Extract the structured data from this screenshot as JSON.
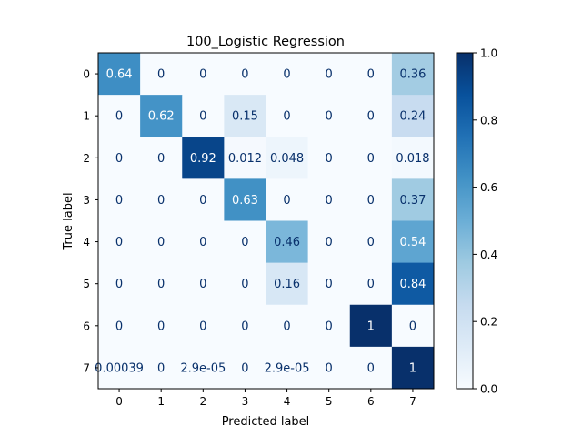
{
  "chart_data": {
    "type": "heatmap",
    "title": "100_Logistic Regression",
    "xlabel": "Predicted label",
    "ylabel": "True label",
    "x_categories": [
      "0",
      "1",
      "2",
      "3",
      "4",
      "5",
      "6",
      "7"
    ],
    "y_categories": [
      "0",
      "1",
      "2",
      "3",
      "4",
      "5",
      "6",
      "7"
    ],
    "values": [
      [
        0.64,
        0,
        0,
        0,
        0,
        0,
        0,
        0.36
      ],
      [
        0,
        0.62,
        0,
        0.15,
        0,
        0,
        0,
        0.24
      ],
      [
        0,
        0,
        0.92,
        0.012,
        0.048,
        0,
        0,
        0.018
      ],
      [
        0,
        0,
        0,
        0.63,
        0,
        0,
        0,
        0.37
      ],
      [
        0,
        0,
        0,
        0,
        0.46,
        0,
        0,
        0.54
      ],
      [
        0,
        0,
        0,
        0,
        0.16,
        0,
        0,
        0.84
      ],
      [
        0,
        0,
        0,
        0,
        0,
        0,
        1,
        0
      ],
      [
        0.00039,
        0,
        2.9e-05,
        0,
        2.9e-05,
        0,
        0,
        1
      ]
    ],
    "cell_labels": [
      [
        "0.64",
        "0",
        "0",
        "0",
        "0",
        "0",
        "0",
        "0.36"
      ],
      [
        "0",
        "0.62",
        "0",
        "0.15",
        "0",
        "0",
        "0",
        "0.24"
      ],
      [
        "0",
        "0",
        "0.92",
        "0.012",
        "0.048",
        "0",
        "0",
        "0.018"
      ],
      [
        "0",
        "0",
        "0",
        "0.63",
        "0",
        "0",
        "0",
        "0.37"
      ],
      [
        "0",
        "0",
        "0",
        "0",
        "0.46",
        "0",
        "0",
        "0.54"
      ],
      [
        "0",
        "0",
        "0",
        "0",
        "0.16",
        "0",
        "0",
        "0.84"
      ],
      [
        "0",
        "0",
        "0",
        "0",
        "0",
        "0",
        "1",
        "0"
      ],
      [
        "0.00039",
        "0",
        "2.9e-05",
        "0",
        "2.9e-05",
        "0",
        "0",
        "1"
      ]
    ],
    "colormap": "Blues",
    "colorbar": {
      "range": [
        0.0,
        1.0
      ],
      "ticks": [
        0.0,
        0.2,
        0.4,
        0.6,
        0.8,
        1.0
      ],
      "tick_labels": [
        "0.0",
        "0.2",
        "0.4",
        "0.6",
        "0.8",
        "1.0"
      ]
    },
    "grid": false
  }
}
